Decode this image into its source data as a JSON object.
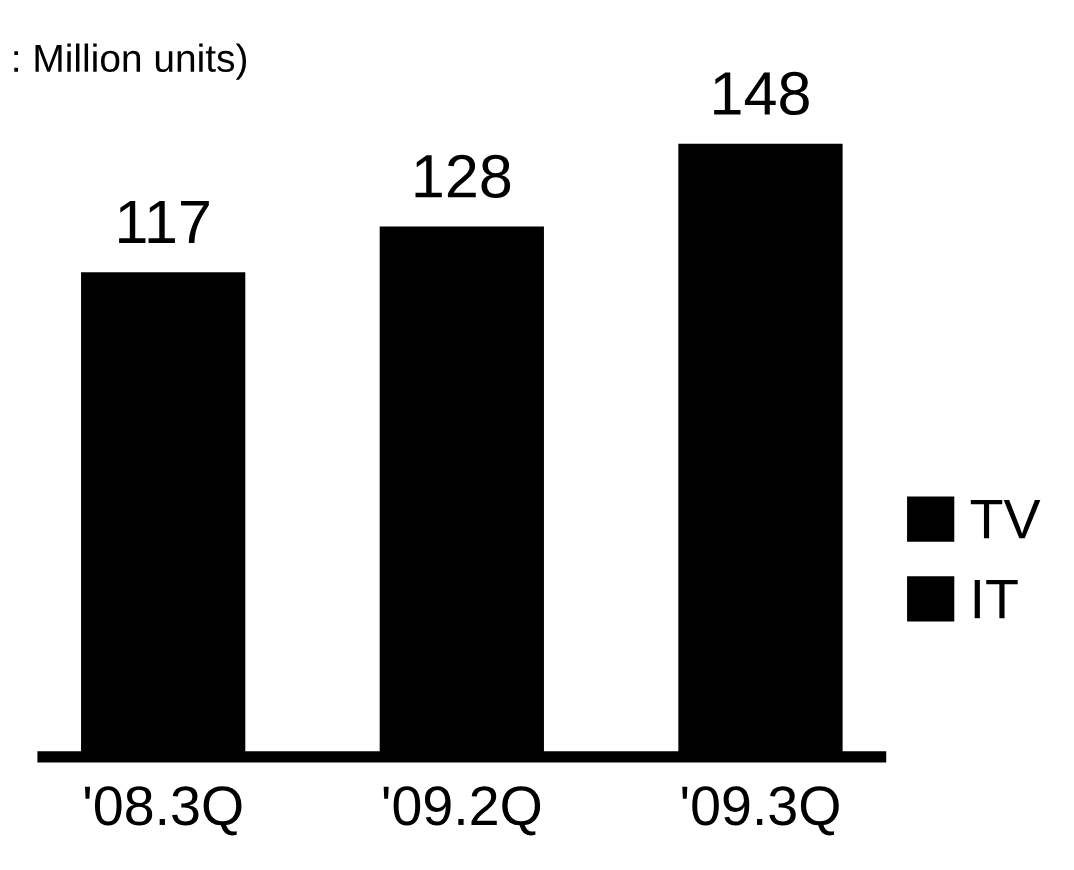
{
  "chart_data": {
    "type": "bar",
    "categories": [
      "'08.3Q",
      "'09.2Q",
      "'09.3Q"
    ],
    "series": [
      {
        "name": "TV",
        "color": "#000000",
        "values": [
          117,
          128,
          148
        ]
      },
      {
        "name": "IT",
        "color": "#000000",
        "values": [
          null,
          null,
          null
        ]
      }
    ],
    "data_labels": true,
    "legend": "right",
    "grid": false,
    "annotations": [
      ": Million units)"
    ]
  }
}
